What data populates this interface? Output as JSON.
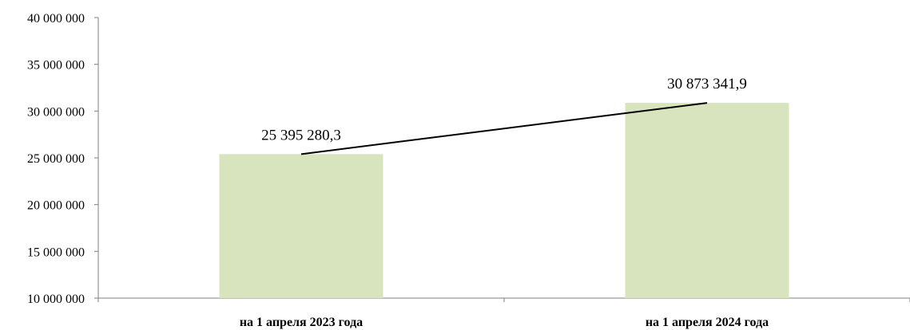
{
  "chart_data": {
    "type": "bar",
    "categories": [
      "на 1 апреля 2023 года",
      "на 1 апреля 2024 года"
    ],
    "values": [
      25395280.3,
      30873341.9
    ],
    "data_labels": [
      "25 395 280,3",
      "30 873 341,9"
    ],
    "overlay_line": true,
    "title": "",
    "xlabel": "",
    "ylabel": "",
    "ylim": [
      10000000,
      40000000
    ],
    "y_ticks": [
      10000000,
      15000000,
      20000000,
      25000000,
      30000000,
      35000000,
      40000000
    ],
    "y_tick_labels": [
      "10 000 000",
      "15 000 000",
      "20 000 000",
      "25 000 000",
      "30 000 000",
      "35 000 000",
      "40 000 000"
    ],
    "grid": false,
    "legend": "none",
    "bar_color": "#d7e4bd",
    "line_color": "#000000",
    "axis_color": "#808080"
  }
}
